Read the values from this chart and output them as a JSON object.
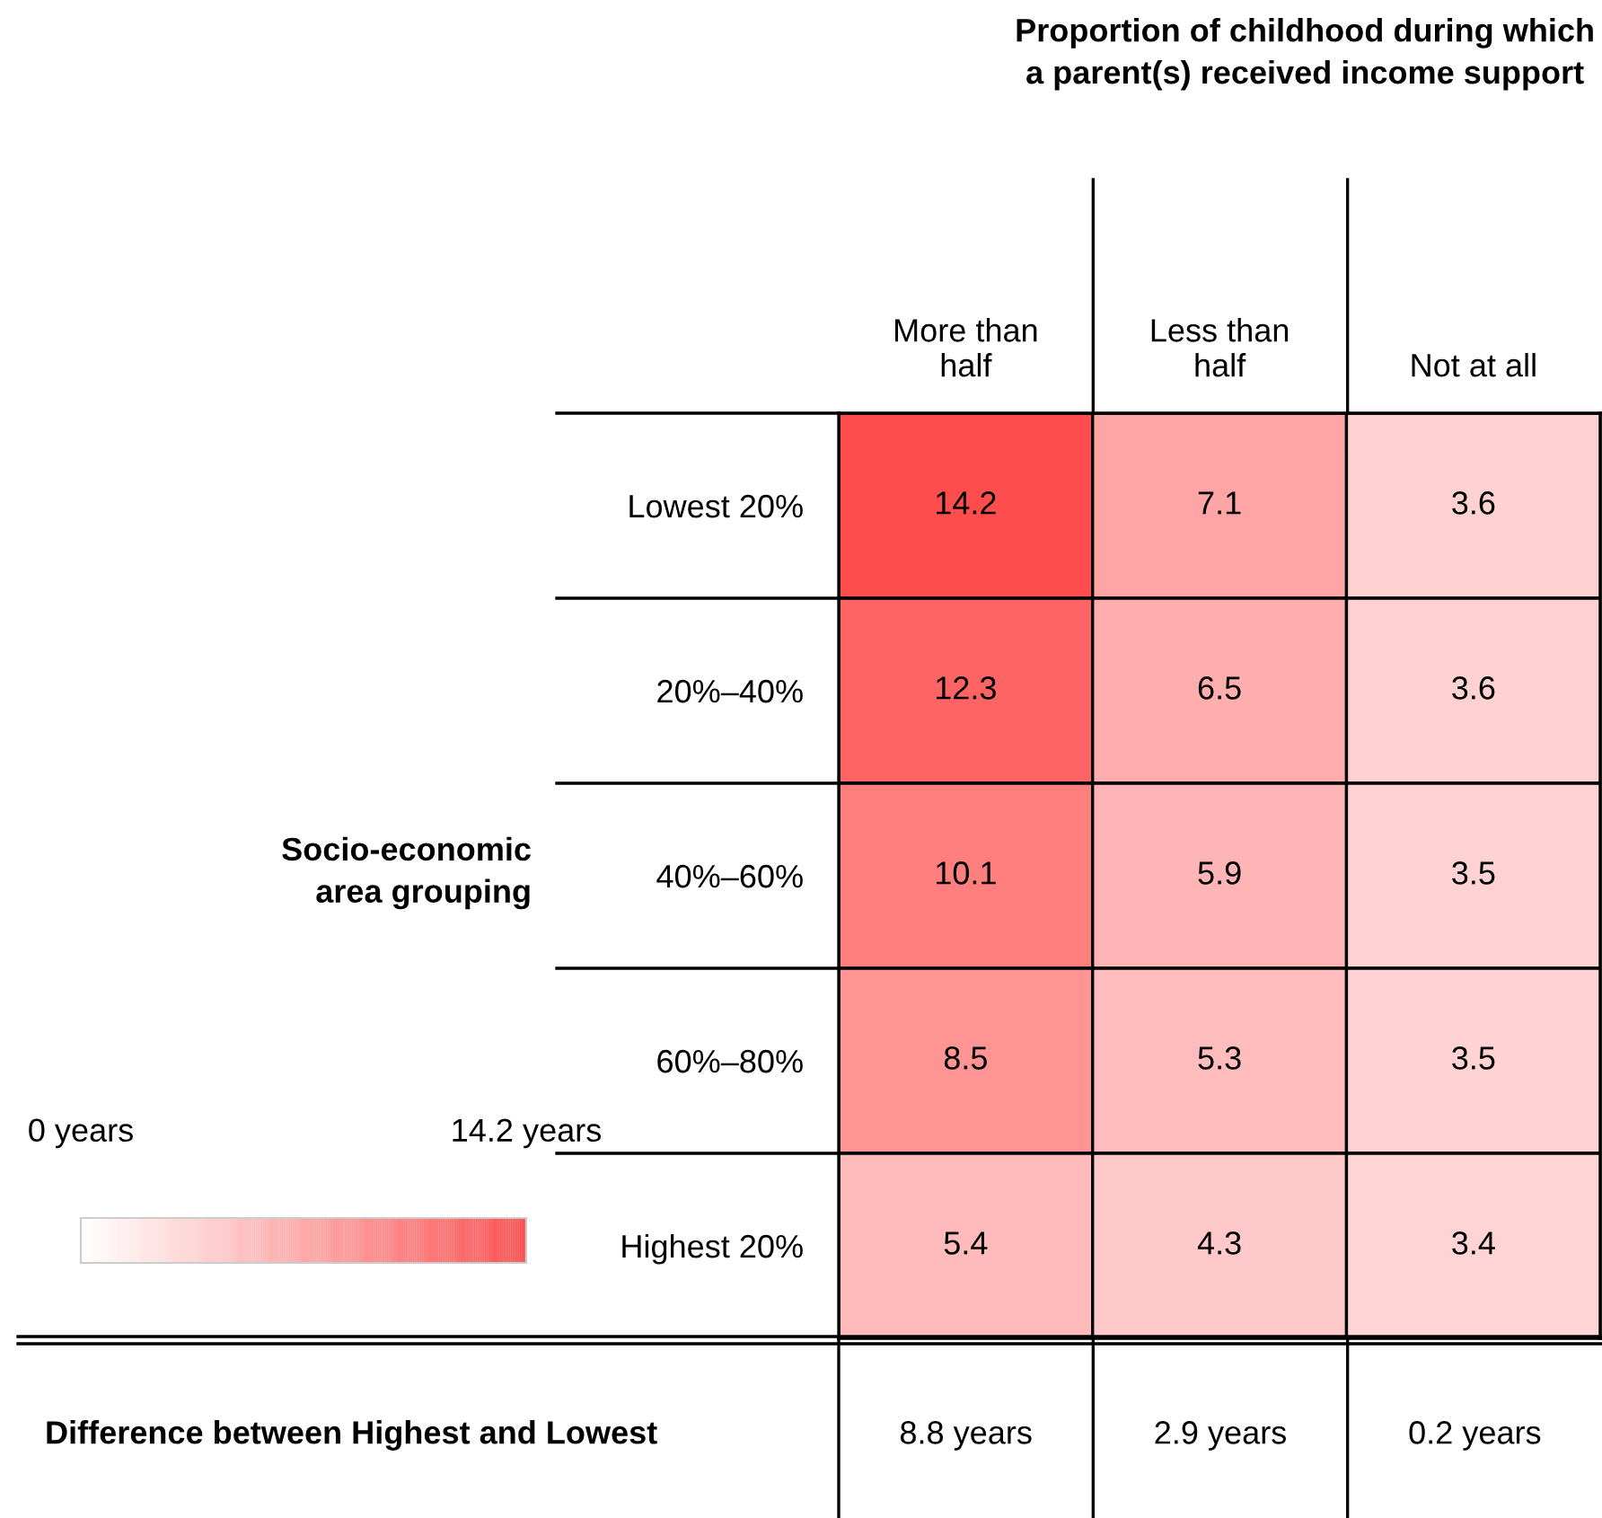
{
  "chart_data": {
    "type": "heatmap",
    "title": "Proportion of childhood during which\na parent(s) received income support",
    "ylabel": "Socio-economic\narea grouping",
    "categories": [
      "More than\nhalf",
      "Less than\nhalf",
      "Not at all"
    ],
    "y_categories": [
      "Lowest 20%",
      "20%–40%",
      "40%–60%",
      "60%–80%",
      "Highest 20%"
    ],
    "cells": [
      [
        14.2,
        7.1,
        3.6
      ],
      [
        12.3,
        6.5,
        3.6
      ],
      [
        10.1,
        5.9,
        3.5
      ],
      [
        8.5,
        5.3,
        3.5
      ],
      [
        5.4,
        4.3,
        3.4
      ]
    ],
    "data_labels": true,
    "colors": [
      "#ffffff",
      "#ff4c4c"
    ],
    "clim": [
      0,
      14.2
    ],
    "cticks": [
      {
        "value": 0,
        "label": "0 years"
      },
      {
        "value": 14.2,
        "label": "14.2 years"
      }
    ],
    "annotations": [
      "Difference between Highest and Lowest",
      "8.8 years",
      "2.9 years",
      "0.2 years"
    ]
  }
}
